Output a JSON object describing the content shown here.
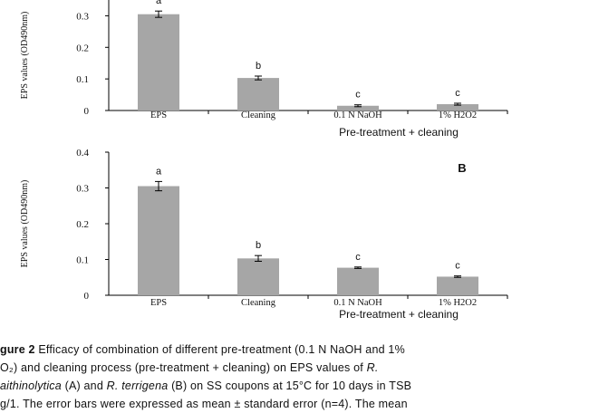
{
  "chart_data": [
    {
      "id": "A",
      "type": "bar",
      "panel_label": "",
      "categories": [
        "EPS",
        "Cleaning",
        "0.1 N NaOH",
        "1% H2O2"
      ],
      "values": [
        0.305,
        0.103,
        0.015,
        0.02
      ],
      "errors": [
        0.01,
        0.006,
        0.003,
        0.003
      ],
      "significance_letters": [
        "a",
        "b",
        "c",
        "c"
      ],
      "xlabel": "Pre-treatment + cleaning",
      "ylabel": "EPS values (OD490nm)",
      "ylim": [
        0,
        0.35
      ],
      "yticks": [
        0,
        0.1,
        0.2,
        0.3
      ],
      "ytick_labels": [
        "0",
        "0.1",
        "0.2",
        "0.3"
      ],
      "grid": false,
      "bar_color": "#a6a6a6"
    },
    {
      "id": "B",
      "type": "bar",
      "panel_label": "B",
      "categories": [
        "EPS",
        "Cleaning",
        "0.1 N NaOH",
        "1% H2O2"
      ],
      "values": [
        0.305,
        0.103,
        0.077,
        0.052
      ],
      "errors": [
        0.013,
        0.008,
        0.002,
        0.002
      ],
      "significance_letters": [
        "a",
        "b",
        "c",
        "c"
      ],
      "xlabel": "Pre-treatment + cleaning",
      "ylabel": "EPS values (OD490nm)",
      "ylim": [
        0,
        0.4
      ],
      "yticks": [
        0,
        0.1,
        0.2,
        0.3,
        0.4
      ],
      "ytick_labels": [
        "0",
        "0.1",
        "0.2",
        "0.3",
        "0.4"
      ],
      "grid": false,
      "bar_color": "#a6a6a6"
    }
  ],
  "caption": {
    "line1_bold": "gure 2",
    "line1_rest": " Efficacy of combination of different pre-treatment (0.1 N NaOH and 1%",
    "line2_pre": "O₂) and cleaning process (pre-treatment + cleaning) on EPS values of ",
    "line2_italic": "R.",
    "line3_italic1": "aithinolytica",
    "line3_mid": " (A) and ",
    "line3_italic2": "R. terrigena",
    "line3_rest": " (B) on SS coupons at 15°C for 10 days in TSB",
    "line4": "g/1. The error bars were expressed as mean ± standard error (n=4). The mean"
  }
}
